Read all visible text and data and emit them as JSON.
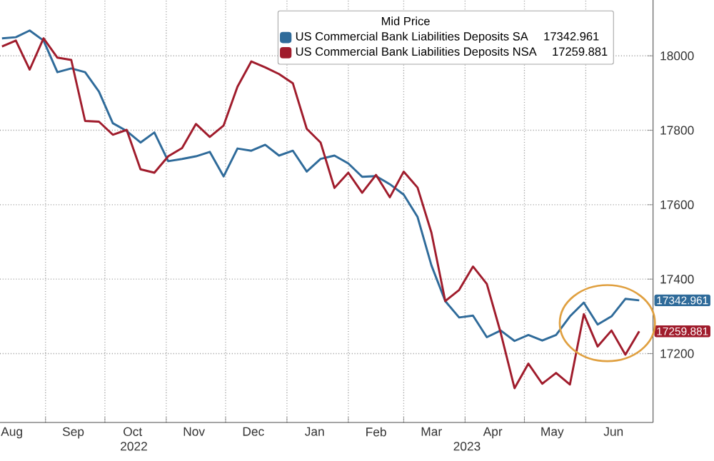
{
  "chart_data": {
    "type": "line",
    "legend_title": "Mid Price",
    "x": [
      "2022-08-10",
      "2022-08-17",
      "2022-08-24",
      "2022-08-31",
      "2022-09-07",
      "2022-09-14",
      "2022-09-21",
      "2022-09-28",
      "2022-10-05",
      "2022-10-12",
      "2022-10-19",
      "2022-10-26",
      "2022-11-02",
      "2022-11-09",
      "2022-11-16",
      "2022-11-23",
      "2022-11-30",
      "2022-12-07",
      "2022-12-14",
      "2022-12-21",
      "2022-12-28",
      "2023-01-04",
      "2023-01-11",
      "2023-01-18",
      "2023-01-25",
      "2023-02-01",
      "2023-02-08",
      "2023-02-15",
      "2023-02-22",
      "2023-03-01",
      "2023-03-08",
      "2023-03-15",
      "2023-03-22",
      "2023-03-29",
      "2023-04-05",
      "2023-04-12",
      "2023-04-19",
      "2023-04-26",
      "2023-05-03",
      "2023-05-10",
      "2023-05-17",
      "2023-05-24",
      "2023-05-31",
      "2023-06-07",
      "2023-06-14",
      "2023-06-21",
      "2023-06-28"
    ],
    "series": [
      {
        "name": "US Commercial Bank Liabilities Deposits SA",
        "color": "#2f6b9a",
        "values": [
          18047,
          18050,
          18068,
          18041,
          17956,
          17966,
          17956,
          17904,
          17819,
          17798,
          17767,
          17794,
          17717,
          17723,
          17730,
          17742,
          17676,
          17751,
          17745,
          17761,
          17732,
          17745,
          17689,
          17723,
          17732,
          17711,
          17675,
          17677,
          17655,
          17627,
          17567,
          17437,
          17341,
          17297,
          17302,
          17244,
          17262,
          17234,
          17250,
          17235,
          17250,
          17300,
          17337,
          17278,
          17300,
          17347,
          17342.961
        ],
        "value_labels": [
          null,
          null,
          null,
          null,
          null,
          null,
          null,
          null,
          null,
          null,
          null,
          null,
          null,
          null,
          null,
          null,
          null,
          null,
          null,
          null,
          null,
          null,
          null,
          null,
          null,
          null,
          null,
          null,
          null,
          null,
          null,
          null,
          null,
          null,
          null,
          null,
          null,
          null,
          null,
          null,
          null,
          null,
          null,
          null,
          null,
          null,
          "17342.961"
        ]
      },
      {
        "name": "US Commercial Bank Liabilities Deposits NSA",
        "color": "#a01c2c",
        "values": [
          18025,
          18041,
          17963,
          18047,
          17995,
          17989,
          17825,
          17823,
          17788,
          17801,
          17695,
          17686,
          17730,
          17752,
          17817,
          17782,
          17813,
          17917,
          17985,
          17969,
          17951,
          17926,
          17804,
          17767,
          17645,
          17686,
          17632,
          17680,
          17620,
          17689,
          17646,
          17525,
          17341,
          17371,
          17434,
          17387,
          17256,
          17107,
          17173,
          17119,
          17148,
          17117,
          17306,
          17219,
          17262,
          17197,
          17259.881
        ],
        "value_labels": [
          null,
          null,
          null,
          null,
          null,
          null,
          null,
          null,
          null,
          null,
          null,
          null,
          null,
          null,
          null,
          null,
          null,
          null,
          null,
          null,
          null,
          null,
          null,
          null,
          null,
          null,
          null,
          null,
          null,
          null,
          null,
          null,
          null,
          null,
          null,
          null,
          null,
          null,
          null,
          null,
          null,
          null,
          null,
          null,
          null,
          null,
          "17259.881"
        ]
      }
    ],
    "xlim": [
      "2022-08-09",
      "2023-07-05"
    ],
    "ylim": [
      17015,
      18150
    ],
    "xticks": [
      {
        "value": "2022-09-01",
        "label": null
      },
      {
        "value": "2022-10-01",
        "label": null
      },
      {
        "value": "2022-11-01",
        "label": null
      },
      {
        "value": "2022-12-01",
        "label": null
      },
      {
        "value": "2023-01-01",
        "label": null
      },
      {
        "value": "2023-02-01",
        "label": null
      },
      {
        "value": "2023-03-01",
        "label": null
      },
      {
        "value": "2023-04-01",
        "label": null
      },
      {
        "value": "2023-05-01",
        "label": null
      },
      {
        "value": "2023-06-01",
        "label": null
      },
      {
        "value": "2022-08-15",
        "label": "Aug"
      },
      {
        "value": "2022-09-15",
        "label": "Sep"
      },
      {
        "value": "2022-10-15",
        "label": "Oct"
      },
      {
        "value": "2022-11-15",
        "label": "Nov"
      },
      {
        "value": "2022-12-15",
        "label": "Dec"
      },
      {
        "value": "2023-01-15",
        "label": "Jan"
      },
      {
        "value": "2023-02-15",
        "label": "Feb"
      },
      {
        "value": "2023-03-15",
        "label": "Mar"
      },
      {
        "value": "2023-04-15",
        "label": "Apr"
      },
      {
        "value": "2023-05-15",
        "label": "May"
      },
      {
        "value": "2023-06-15",
        "label": "Jun"
      }
    ],
    "yticks": [
      17200,
      17400,
      17600,
      17800,
      18000
    ],
    "grid": true,
    "legend": "top right",
    "annotations": [
      "2022",
      "2023"
    ]
  }
}
